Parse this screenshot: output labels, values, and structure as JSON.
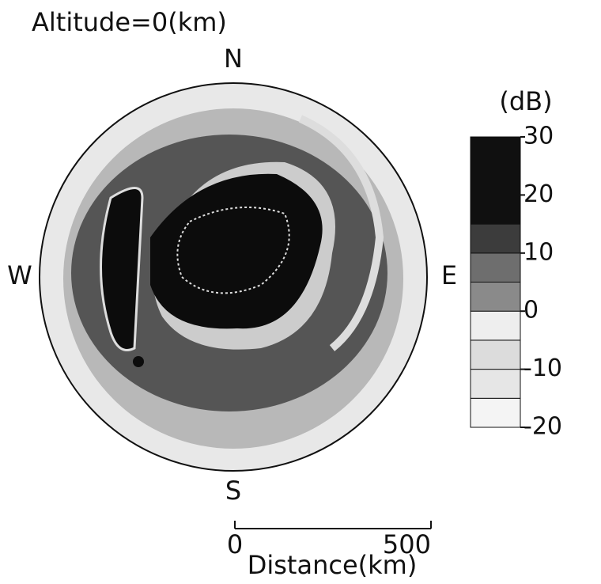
{
  "chart_data": {
    "type": "radar-map",
    "title": "Altitude=0(km)",
    "compass": [
      "N",
      "E",
      "S",
      "W"
    ],
    "colorbar": {
      "label": "(dB)",
      "lim": [
        -20,
        30
      ],
      "ticks": [
        30,
        20,
        10,
        0,
        -10,
        -20
      ],
      "levels": [
        -20,
        -15,
        -10,
        -5,
        0,
        5,
        10,
        15,
        30
      ],
      "colors": [
        "#f4f4f4",
        "#e6e6e6",
        "#dcdcdc",
        "#eeeeee",
        "#8a8a8a",
        "#6e6e6e",
        "#3c3c3c",
        "#101010"
      ]
    },
    "xlabel": "Distance(km)",
    "xlim": [
      0,
      500
    ],
    "xticks": [
      0,
      500
    ]
  }
}
